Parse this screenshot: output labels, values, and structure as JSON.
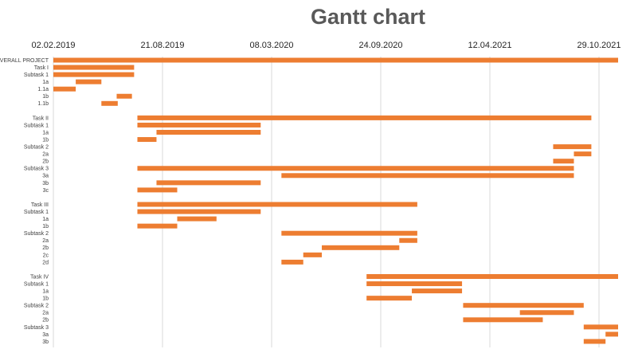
{
  "chart_data": {
    "type": "bar",
    "orientation": "horizontal",
    "title": "Gantt chart",
    "xlabel": "",
    "ylabel": "",
    "x_ticks": [
      "02.02.2019",
      "21.08.2019",
      "08.03.2020",
      "24.09.2020",
      "12.04.2021",
      "29.10.2021"
    ],
    "grid": true,
    "legend": "none",
    "bar_color": "#ed7d31",
    "tasks": [
      {
        "label": "OVERALL PROJECT",
        "start": "2019-02-02",
        "end": "2021-12-04"
      },
      {
        "label": "Task I",
        "start": "2019-02-02",
        "end": "2019-06-30"
      },
      {
        "label": "Subtask 1",
        "start": "2019-02-02",
        "end": "2019-06-30"
      },
      {
        "label": "1a",
        "start": "2019-03-15",
        "end": "2019-05-01"
      },
      {
        "label": "1.1a",
        "start": "2019-02-02",
        "end": "2019-03-15"
      },
      {
        "label": "1b",
        "start": "2019-05-29",
        "end": "2019-06-26"
      },
      {
        "label": "1.1b",
        "start": "2019-05-01",
        "end": "2019-05-31"
      },
      {
        "label": "",
        "start": null,
        "end": null
      },
      {
        "label": "Task II",
        "start": "2019-07-06",
        "end": "2021-10-15"
      },
      {
        "label": "Subtask 1",
        "start": "2019-07-06",
        "end": "2020-02-17"
      },
      {
        "label": "1a",
        "start": "2019-08-10",
        "end": "2020-02-17"
      },
      {
        "label": "1b",
        "start": "2019-07-06",
        "end": "2019-08-10"
      },
      {
        "label": "Subtask 2",
        "start": "2021-08-06",
        "end": "2021-10-15"
      },
      {
        "label": "2a",
        "start": "2021-09-13",
        "end": "2021-10-15"
      },
      {
        "label": "2b",
        "start": "2021-08-06",
        "end": "2021-09-13"
      },
      {
        "label": "Subtask 3",
        "start": "2019-07-06",
        "end": "2021-09-13"
      },
      {
        "label": "3a",
        "start": "2020-03-26",
        "end": "2021-09-13"
      },
      {
        "label": "3b",
        "start": "2019-08-10",
        "end": "2020-02-17"
      },
      {
        "label": "3c",
        "start": "2019-07-06",
        "end": "2019-09-17"
      },
      {
        "label": "",
        "start": null,
        "end": null
      },
      {
        "label": "Task III",
        "start": "2019-07-06",
        "end": "2020-11-30"
      },
      {
        "label": "Subtask 1",
        "start": "2019-07-06",
        "end": "2020-02-17"
      },
      {
        "label": "1a",
        "start": "2019-09-17",
        "end": "2019-11-28"
      },
      {
        "label": "1b",
        "start": "2019-07-06",
        "end": "2019-09-17"
      },
      {
        "label": "Subtask 2",
        "start": "2020-03-26",
        "end": "2020-11-30"
      },
      {
        "label": "2a",
        "start": "2020-10-28",
        "end": "2020-11-30"
      },
      {
        "label": "2b",
        "start": "2020-06-08",
        "end": "2020-10-28"
      },
      {
        "label": "2c",
        "start": "2020-05-05",
        "end": "2020-06-08"
      },
      {
        "label": "2d",
        "start": "2020-03-26",
        "end": "2020-05-05"
      },
      {
        "label": "",
        "start": null,
        "end": null
      },
      {
        "label": "Task IV",
        "start": "2020-08-29",
        "end": "2021-12-06"
      },
      {
        "label": "Subtask 1",
        "start": "2020-08-29",
        "end": "2021-02-20"
      },
      {
        "label": "1a",
        "start": "2020-11-20",
        "end": "2021-02-20"
      },
      {
        "label": "1b",
        "start": "2020-08-29",
        "end": "2020-11-20"
      },
      {
        "label": "Subtask 2",
        "start": "2021-02-22",
        "end": "2021-10-01"
      },
      {
        "label": "2a",
        "start": "2021-06-06",
        "end": "2021-09-13"
      },
      {
        "label": "2b",
        "start": "2021-02-22",
        "end": "2021-07-18"
      },
      {
        "label": "Subtask 3",
        "start": "2021-10-01",
        "end": "2021-12-04"
      },
      {
        "label": "3a",
        "start": "2021-11-10",
        "end": "2021-12-04"
      },
      {
        "label": "3b",
        "start": "2021-10-01",
        "end": "2021-11-10"
      }
    ]
  }
}
